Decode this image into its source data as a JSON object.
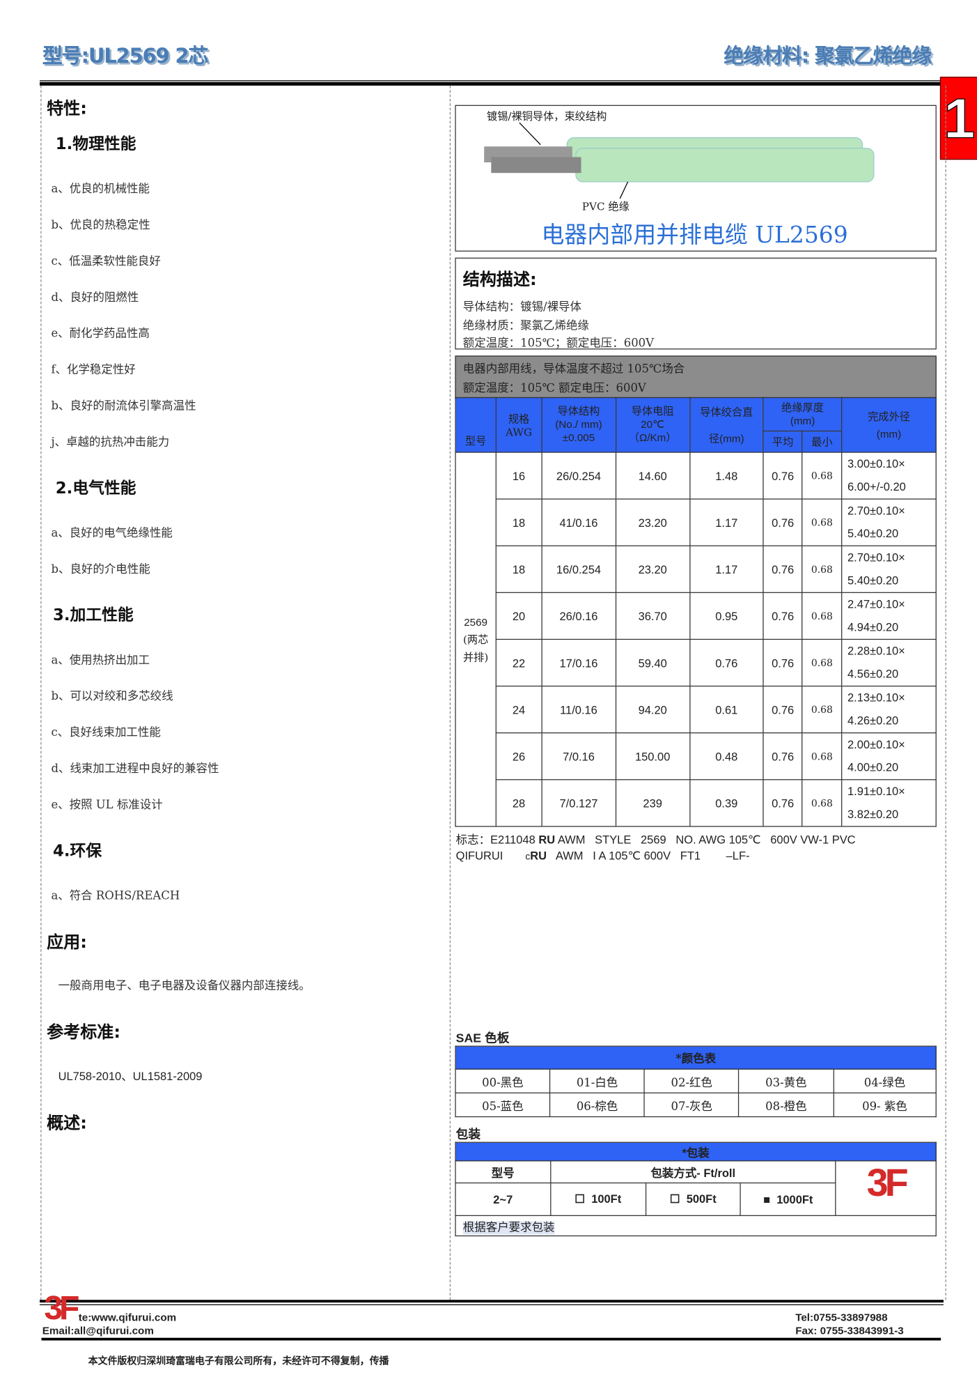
{
  "header": {
    "model": "型号:UL2569 2芯",
    "material": "绝缘材料: 聚氯乙烯绝缘",
    "page_number": "1"
  },
  "left": {
    "features_title": "特性:",
    "sections": [
      {
        "title": "1.物理性能",
        "items": [
          "a、优良的机械性能",
          "b、优良的热稳定性",
          "c、低温柔软性能良好",
          "d、良好的阻燃性",
          "e、耐化学药品性高",
          "f、化学稳定性好",
          "b、良好的耐流体引擎高温性",
          "j、卓越的抗热冲击能力"
        ]
      },
      {
        "title": "2.电气性能",
        "items": [
          "a、良好的电气绝缘性能",
          "b、良好的介电性能"
        ]
      },
      {
        "title": "3.加工性能",
        "items": [
          "a、使用热挤出加工",
          "b、可以对绞和多芯绞线",
          "c、良好线束加工性能",
          "d、线束加工进程中良好的兼容性",
          "e、按照 UL 标准设计"
        ]
      },
      {
        "title": "4.环保",
        "items": [
          "a、符合 ROHS/REACH"
        ]
      }
    ],
    "application_title": "应用:",
    "application_text": "一般商用电子、电子电器及设备仪器内部连接线。",
    "standard_title": "参考标准:",
    "standard_text": "UL758-2010、UL1581-2009",
    "overview_title": "概述:"
  },
  "diagram": {
    "conductor_label": "镀锡/裸铜导体，束绞结构",
    "insulation_label": "PVC 绝缘",
    "caption": "电器内部用并排电缆 UL2569",
    "insulation_color": "#b9e6bc"
  },
  "structure": {
    "title": "结构描述:",
    "lines": [
      "导体结构：镀锡/裸导体",
      "绝缘材质：聚氯乙烯绝缘",
      "额定温度：105℃；额定电压：600V"
    ]
  },
  "spec": {
    "note_lines": [
      "电器内部用线，导体温度不超过 105℃场合",
      "额定温度：105℃  额定电压：600V"
    ],
    "headers": {
      "model": "型号",
      "awg": "规格\nAWG",
      "conductor": "导体结构\n(No./ mm)\n±0.005",
      "resistance": "导体电阻\n20℃\n（Ω/Km）",
      "diameter_top": "导体绞合直",
      "diameter_bottom": "径(mm)",
      "thickness": "绝缘厚度\n(mm)",
      "avg": "平均",
      "min": "最小",
      "od": "完成外径\n(mm)"
    },
    "model_cell": [
      "2569",
      "(两芯",
      "并排)"
    ],
    "rows": [
      {
        "awg": "16",
        "conductor": "26/0.254",
        "resistance": "14.60",
        "diameter": "1.48",
        "avg": "0.76",
        "min": "0.68",
        "od1": "3.00±0.10×",
        "od2": "6.00+/-0.20"
      },
      {
        "awg": "18",
        "conductor": "41/0.16",
        "resistance": "23.20",
        "diameter": "1.17",
        "avg": "0.76",
        "min": "0.68",
        "od1": "2.70±0.10×",
        "od2": "5.40±0.20"
      },
      {
        "awg": "18",
        "conductor": "16/0.254",
        "resistance": "23.20",
        "diameter": "1.17",
        "avg": "0.76",
        "min": "0.68",
        "od1": "2.70±0.10×",
        "od2": "5.40±0.20"
      },
      {
        "awg": "20",
        "conductor": "26/0.16",
        "resistance": "36.70",
        "diameter": "0.95",
        "avg": "0.76",
        "min": "0.68",
        "od1": "2.47±0.10×",
        "od2": "4.94±0.20"
      },
      {
        "awg": "22",
        "conductor": "17/0.16",
        "resistance": "59.40",
        "diameter": "0.76",
        "avg": "0.76",
        "min": "0.68",
        "od1": "2.28±0.10×",
        "od2": "4.56±0.20"
      },
      {
        "awg": "24",
        "conductor": "11/0.16",
        "resistance": "94.20",
        "diameter": "0.61",
        "avg": "0.76",
        "min": "0.68",
        "od1": "2.13±0.10×",
        "od2": "4.26±0.20"
      },
      {
        "awg": "26",
        "conductor": "7/0.16",
        "resistance": "150.00",
        "diameter": "0.48",
        "avg": "0.76",
        "min": "0.68",
        "od1": "2.00±0.10×",
        "od2": "4.00±0.20"
      },
      {
        "awg": "28",
        "conductor": "7/0.127",
        "resistance": "239",
        "diameter": "0.39",
        "avg": "0.76",
        "min": "0.68",
        "od1": "1.91±0.10×",
        "od2": "3.82±0.20"
      }
    ]
  },
  "marking": {
    "line1_a": "标志：E211048",
    "line1_b": "AWM   STYLE   2569   NO. AWG 105℃   600V VW-1 PVC",
    "line2_a": "QIFURUI",
    "line2_prefix": "c",
    "line2_b": "AWM   I A 105℃ 600V   FT1        –LF-",
    "ul_mark": "RU"
  },
  "colors": {
    "title": "SAE 色板",
    "header": "*颜色表",
    "cells": [
      "00-黑色",
      "01-白色",
      "02-红色",
      "03-黄色",
      "04-绿色",
      "05-蓝色",
      "06-棕色",
      "07-灰色",
      "08-橙色",
      "09- 紫色"
    ]
  },
  "packaging": {
    "title": "包装",
    "header": "*包装",
    "model_label": "型号",
    "method_label": "包装方式- Ft/roll",
    "model_value": "2~7",
    "options": [
      {
        "label": "100Ft",
        "checked": false
      },
      {
        "label": "500Ft",
        "checked": false
      },
      {
        "label": "1000Ft",
        "checked": true
      }
    ],
    "note": "根据客户要求包装",
    "logo": "3F"
  },
  "footer": {
    "website": "te:www.qifurui.com",
    "email": "Email:all@qifurui.com",
    "tel": "Tel:0755-33897988",
    "fax": "Fax: 0755-33843991-3",
    "logo": "3F",
    "copyright": "本文件版权归深圳琦富瑞电子有限公司所有，未经许可不得复制，传播"
  },
  "accent_colors": {
    "table_header": "#2f63f5",
    "note_band": "#8c8c8c",
    "page_tab": "#ff0000",
    "logo": "#d42a2a"
  }
}
